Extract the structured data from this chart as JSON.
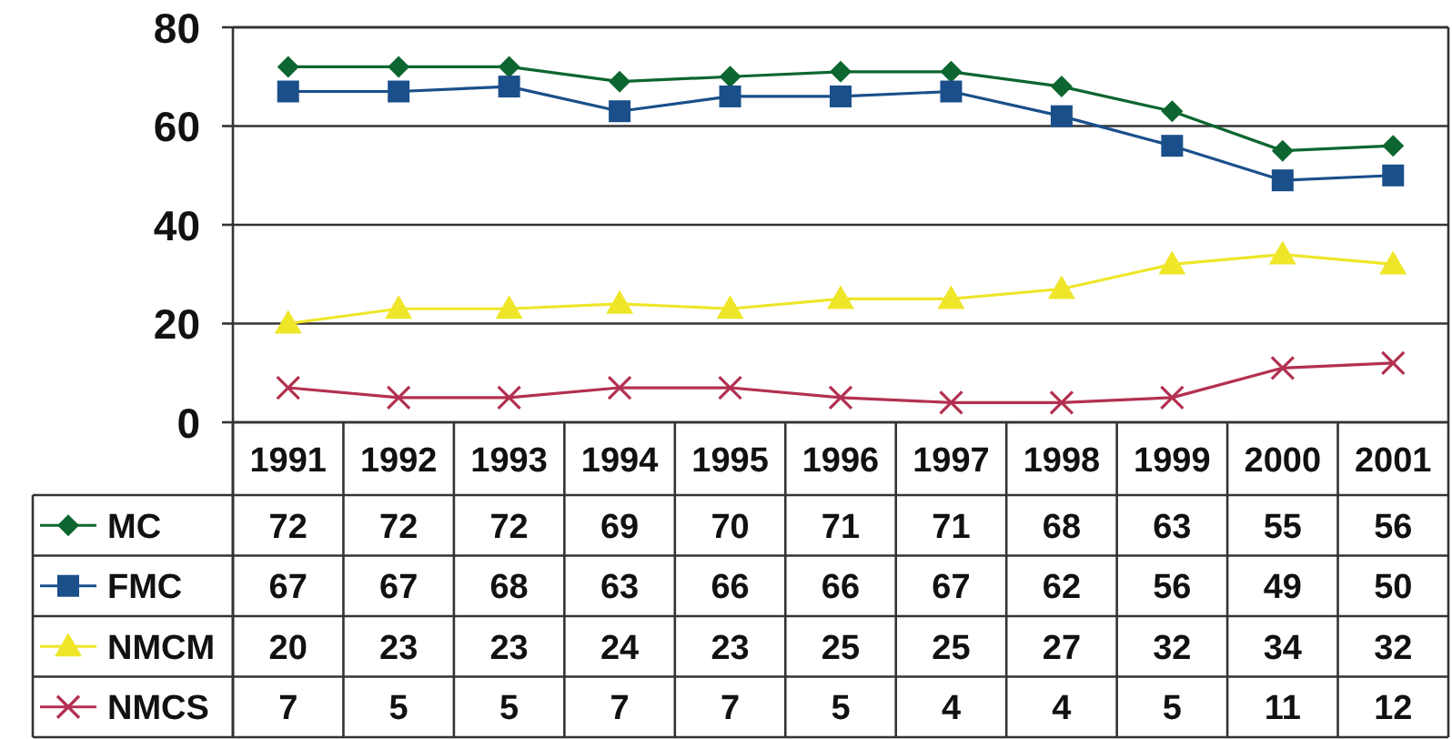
{
  "chart_data": {
    "type": "line",
    "categories": [
      "1991",
      "1992",
      "1993",
      "1994",
      "1995",
      "1996",
      "1997",
      "1998",
      "1999",
      "2000",
      "2001"
    ],
    "series": [
      {
        "name": "MC",
        "color": "#0d6630",
        "marker": "diamond",
        "values": [
          72,
          72,
          72,
          69,
          70,
          71,
          71,
          68,
          63,
          55,
          56
        ]
      },
      {
        "name": "FMC",
        "color": "#1a4f8a",
        "marker": "square",
        "values": [
          67,
          67,
          68,
          63,
          66,
          66,
          67,
          62,
          56,
          49,
          50
        ]
      },
      {
        "name": "NMCM",
        "color": "#efe62a",
        "marker": "triangle",
        "values": [
          20,
          23,
          23,
          24,
          23,
          25,
          25,
          27,
          32,
          34,
          32
        ]
      },
      {
        "name": "NMCS",
        "color": "#b33050",
        "marker": "cross",
        "values": [
          7,
          5,
          5,
          7,
          7,
          5,
          4,
          4,
          5,
          11,
          12
        ]
      }
    ],
    "ylim": [
      0,
      80
    ],
    "yticks": [
      0,
      20,
      40,
      60,
      80
    ],
    "grid": "y",
    "legend": "bottom",
    "data_labels": true,
    "line_style": "solid"
  }
}
